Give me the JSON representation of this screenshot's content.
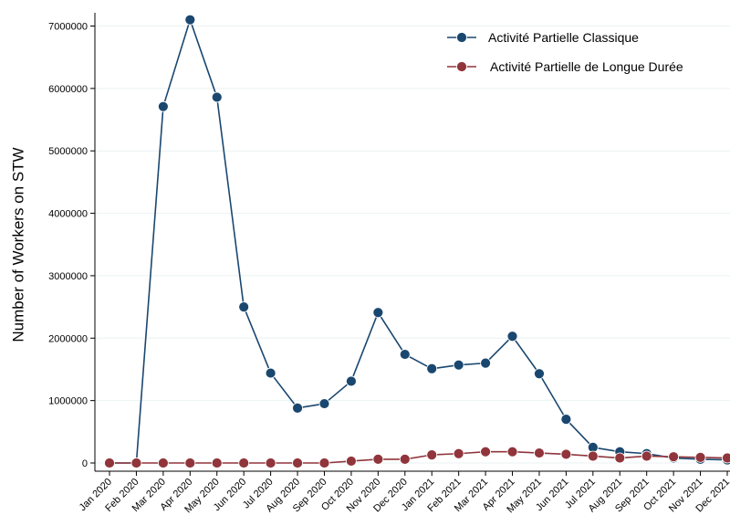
{
  "chart_data": {
    "type": "line",
    "title": "",
    "xlabel": "",
    "ylabel": "Number of Workers on STW",
    "categories": [
      "Jan 2020",
      "Feb 2020",
      "Mar 2020",
      "Apr 2020",
      "May 2020",
      "Jun 2020",
      "Jul 2020",
      "Aug 2020",
      "Sep 2020",
      "Oct 2020",
      "Nov 2020",
      "Dec 2020",
      "Jan 2021",
      "Feb 2021",
      "Mar 2021",
      "Apr 2021",
      "May 2021",
      "Jun 2021",
      "Jul 2021",
      "Aug 2021",
      "Sep 2021",
      "Oct 2021",
      "Nov 2021",
      "Dec 2021"
    ],
    "yticks": [
      0,
      1000000,
      2000000,
      3000000,
      4000000,
      5000000,
      6000000,
      7000000
    ],
    "ylim": [
      -150000,
      7400000
    ],
    "grid": true,
    "legend_position": "top-right",
    "series": [
      {
        "name": "Activité Partielle Classique",
        "color": "#1a476f",
        "values": [
          0,
          0,
          5710000,
          7100000,
          5860000,
          2500000,
          1440000,
          880000,
          950000,
          1310000,
          2410000,
          1740000,
          1510000,
          1570000,
          1600000,
          2030000,
          1430000,
          700000,
          250000,
          180000,
          150000,
          80000,
          60000,
          50000
        ]
      },
      {
        "name": "Activité Partielle de Longue Durée",
        "color": "#90353b",
        "values": [
          0,
          0,
          0,
          0,
          0,
          0,
          0,
          0,
          0,
          30000,
          60000,
          60000,
          130000,
          150000,
          180000,
          180000,
          160000,
          140000,
          110000,
          80000,
          110000,
          100000,
          90000,
          80000
        ]
      }
    ]
  }
}
